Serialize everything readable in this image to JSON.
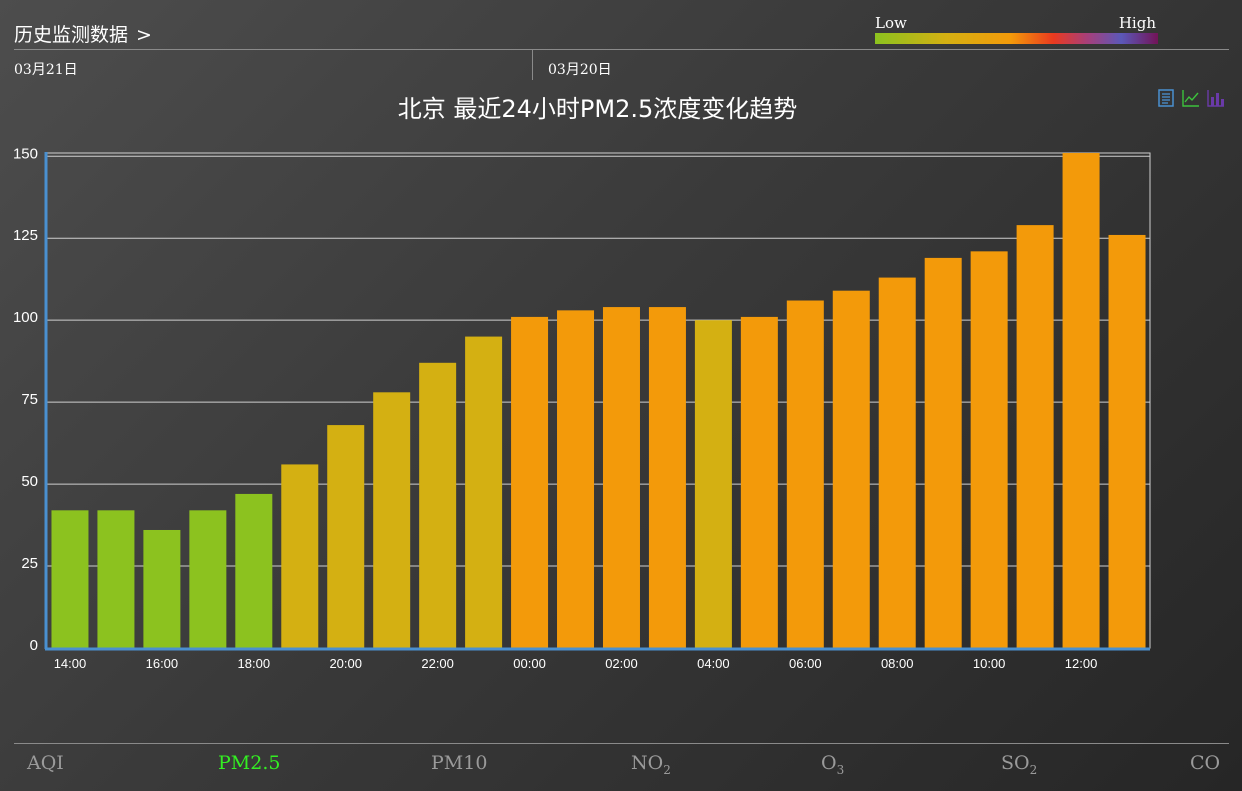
{
  "header": {
    "title": "历史监测数据",
    "chevron": ">"
  },
  "legend": {
    "low": "Low",
    "high": "High",
    "gradient_colors": [
      "#8cc21f",
      "#d4b012",
      "#f39a0a",
      "#ea3a1f",
      "#a73f7a",
      "#5b58b8",
      "#721458"
    ]
  },
  "dates": [
    "03月21日",
    "03月20日"
  ],
  "toolbar": {
    "icons": [
      "data-view-icon",
      "line-chart-icon",
      "bar-chart-icon"
    ]
  },
  "colors": {
    "good": "#8cc21f",
    "moderate": "#d4b012",
    "unhealthy": "#f39a0a",
    "axis": "#4a90d0"
  },
  "chart_data": {
    "type": "bar",
    "title": "北京 最近24小时PM2.5浓度变化趋势",
    "categories": [
      "14:00",
      "15:00",
      "16:00",
      "17:00",
      "18:00",
      "19:00",
      "20:00",
      "21:00",
      "22:00",
      "23:00",
      "00:00",
      "01:00",
      "02:00",
      "03:00",
      "04:00",
      "05:00",
      "06:00",
      "07:00",
      "08:00",
      "09:00",
      "10:00",
      "11:00",
      "12:00",
      "13:00"
    ],
    "values": [
      42,
      42,
      36,
      42,
      47,
      56,
      68,
      78,
      87,
      95,
      101,
      103,
      104,
      104,
      100,
      101,
      106,
      109,
      113,
      119,
      121,
      129,
      151,
      126
    ],
    "xtick_labels": [
      "14:00",
      "16:00",
      "18:00",
      "20:00",
      "22:00",
      "00:00",
      "02:00",
      "04:00",
      "06:00",
      "08:00",
      "10:00",
      "12:00"
    ],
    "yticks": [
      0,
      25,
      50,
      75,
      100,
      125,
      150
    ],
    "ylim": [
      0,
      151
    ],
    "grid": true,
    "legend": "none"
  },
  "tabs": [
    {
      "label": "AQI",
      "sub": "",
      "active": false
    },
    {
      "label": "PM2.5",
      "sub": "",
      "active": true
    },
    {
      "label": "PM10",
      "sub": "",
      "active": false
    },
    {
      "label": "NO",
      "sub": "2",
      "active": false
    },
    {
      "label": "O",
      "sub": "3",
      "active": false
    },
    {
      "label": "SO",
      "sub": "2",
      "active": false
    },
    {
      "label": "CO",
      "sub": "",
      "active": false
    }
  ]
}
